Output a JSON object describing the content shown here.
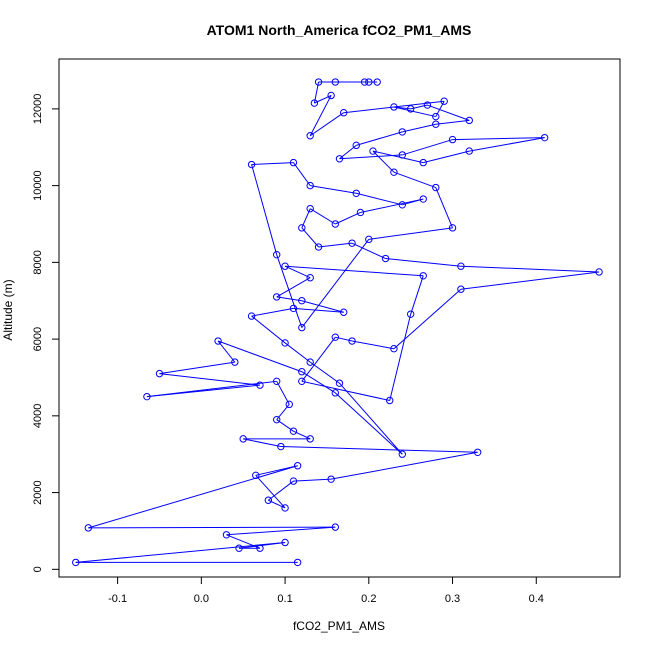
{
  "chart_data": {
    "type": "line",
    "title": "ATOM1 North_America fCO2_PM1_AMS",
    "xlabel": "fCO2_PM1_AMS",
    "ylabel": "Altitude (m)",
    "xlim": [
      -0.17,
      0.5
    ],
    "ylim": [
      -200,
      13300
    ],
    "x_ticks": [
      -0.1,
      0.0,
      0.1,
      0.2,
      0.3,
      0.4
    ],
    "x_tick_labels": [
      "-0.1",
      "0.0",
      "0.1",
      "0.2",
      "0.3",
      "0.4"
    ],
    "y_ticks": [
      0,
      2000,
      4000,
      6000,
      8000,
      10000,
      12000
    ],
    "y_tick_labels": [
      "0",
      "2000",
      "4000",
      "6000",
      "8000",
      "10000",
      "12000"
    ],
    "grid": false,
    "legend": "none",
    "series_color": "#0000ff",
    "series": [
      {
        "marker": "open-circle",
        "points": [
          [
            0.115,
            180
          ],
          [
            -0.15,
            180
          ],
          [
            0.1,
            700
          ],
          [
            0.045,
            550
          ],
          [
            0.07,
            550
          ],
          [
            0.03,
            900
          ],
          [
            0.16,
            1100
          ],
          [
            -0.135,
            1080
          ],
          [
            0.115,
            2700
          ],
          [
            0.065,
            2450
          ],
          [
            0.1,
            1600
          ],
          [
            0.08,
            1800
          ],
          [
            0.11,
            2300
          ],
          [
            0.155,
            2350
          ],
          [
            0.33,
            3050
          ],
          [
            0.095,
            3200
          ],
          [
            0.05,
            3400
          ],
          [
            0.13,
            3400
          ],
          [
            0.11,
            3600
          ],
          [
            0.09,
            3900
          ],
          [
            0.105,
            4300
          ],
          [
            0.09,
            4900
          ],
          [
            -0.065,
            4500
          ],
          [
            0.07,
            4800
          ],
          [
            -0.05,
            5100
          ],
          [
            0.04,
            5400
          ],
          [
            0.02,
            5950
          ],
          [
            0.12,
            5150
          ],
          [
            0.16,
            4600
          ],
          [
            0.24,
            3000
          ],
          [
            0.165,
            4850
          ],
          [
            0.13,
            5400
          ],
          [
            0.1,
            5900
          ],
          [
            0.06,
            6600
          ],
          [
            0.11,
            6800
          ],
          [
            0.17,
            6700
          ],
          [
            0.12,
            7000
          ],
          [
            0.09,
            7100
          ],
          [
            0.13,
            7600
          ],
          [
            0.1,
            7900
          ],
          [
            0.265,
            7650
          ],
          [
            0.25,
            6650
          ],
          [
            0.225,
            4400
          ],
          [
            0.12,
            4900
          ],
          [
            0.16,
            6050
          ],
          [
            0.18,
            5950
          ],
          [
            0.23,
            5750
          ],
          [
            0.31,
            7300
          ],
          [
            0.475,
            7750
          ],
          [
            0.31,
            7900
          ],
          [
            0.22,
            8100
          ],
          [
            0.18,
            8500
          ],
          [
            0.14,
            8400
          ],
          [
            0.12,
            8900
          ],
          [
            0.13,
            9400
          ],
          [
            0.16,
            9000
          ],
          [
            0.19,
            9300
          ],
          [
            0.265,
            9650
          ],
          [
            0.24,
            9500
          ],
          [
            0.185,
            9800
          ],
          [
            0.13,
            10000
          ],
          [
            0.11,
            10600
          ],
          [
            0.06,
            10550
          ],
          [
            0.09,
            8200
          ],
          [
            0.12,
            6300
          ],
          [
            0.2,
            8600
          ],
          [
            0.3,
            8900
          ],
          [
            0.28,
            9950
          ],
          [
            0.23,
            10350
          ],
          [
            0.205,
            10900
          ],
          [
            0.265,
            10600
          ],
          [
            0.32,
            10900
          ],
          [
            0.41,
            11250
          ],
          [
            0.3,
            11200
          ],
          [
            0.24,
            10800
          ],
          [
            0.165,
            10700
          ],
          [
            0.185,
            11050
          ],
          [
            0.24,
            11400
          ],
          [
            0.28,
            11600
          ],
          [
            0.32,
            11700
          ],
          [
            0.27,
            12100
          ],
          [
            0.25,
            12000
          ],
          [
            0.23,
            12050
          ],
          [
            0.28,
            11800
          ],
          [
            0.29,
            12200
          ],
          [
            0.17,
            11900
          ],
          [
            0.13,
            11300
          ],
          [
            0.155,
            12350
          ],
          [
            0.135,
            12150
          ],
          [
            0.14,
            12700
          ],
          [
            0.2,
            12700
          ],
          [
            0.195,
            12700
          ],
          [
            0.16,
            12700
          ],
          [
            0.21,
            12700
          ]
        ]
      }
    ]
  }
}
